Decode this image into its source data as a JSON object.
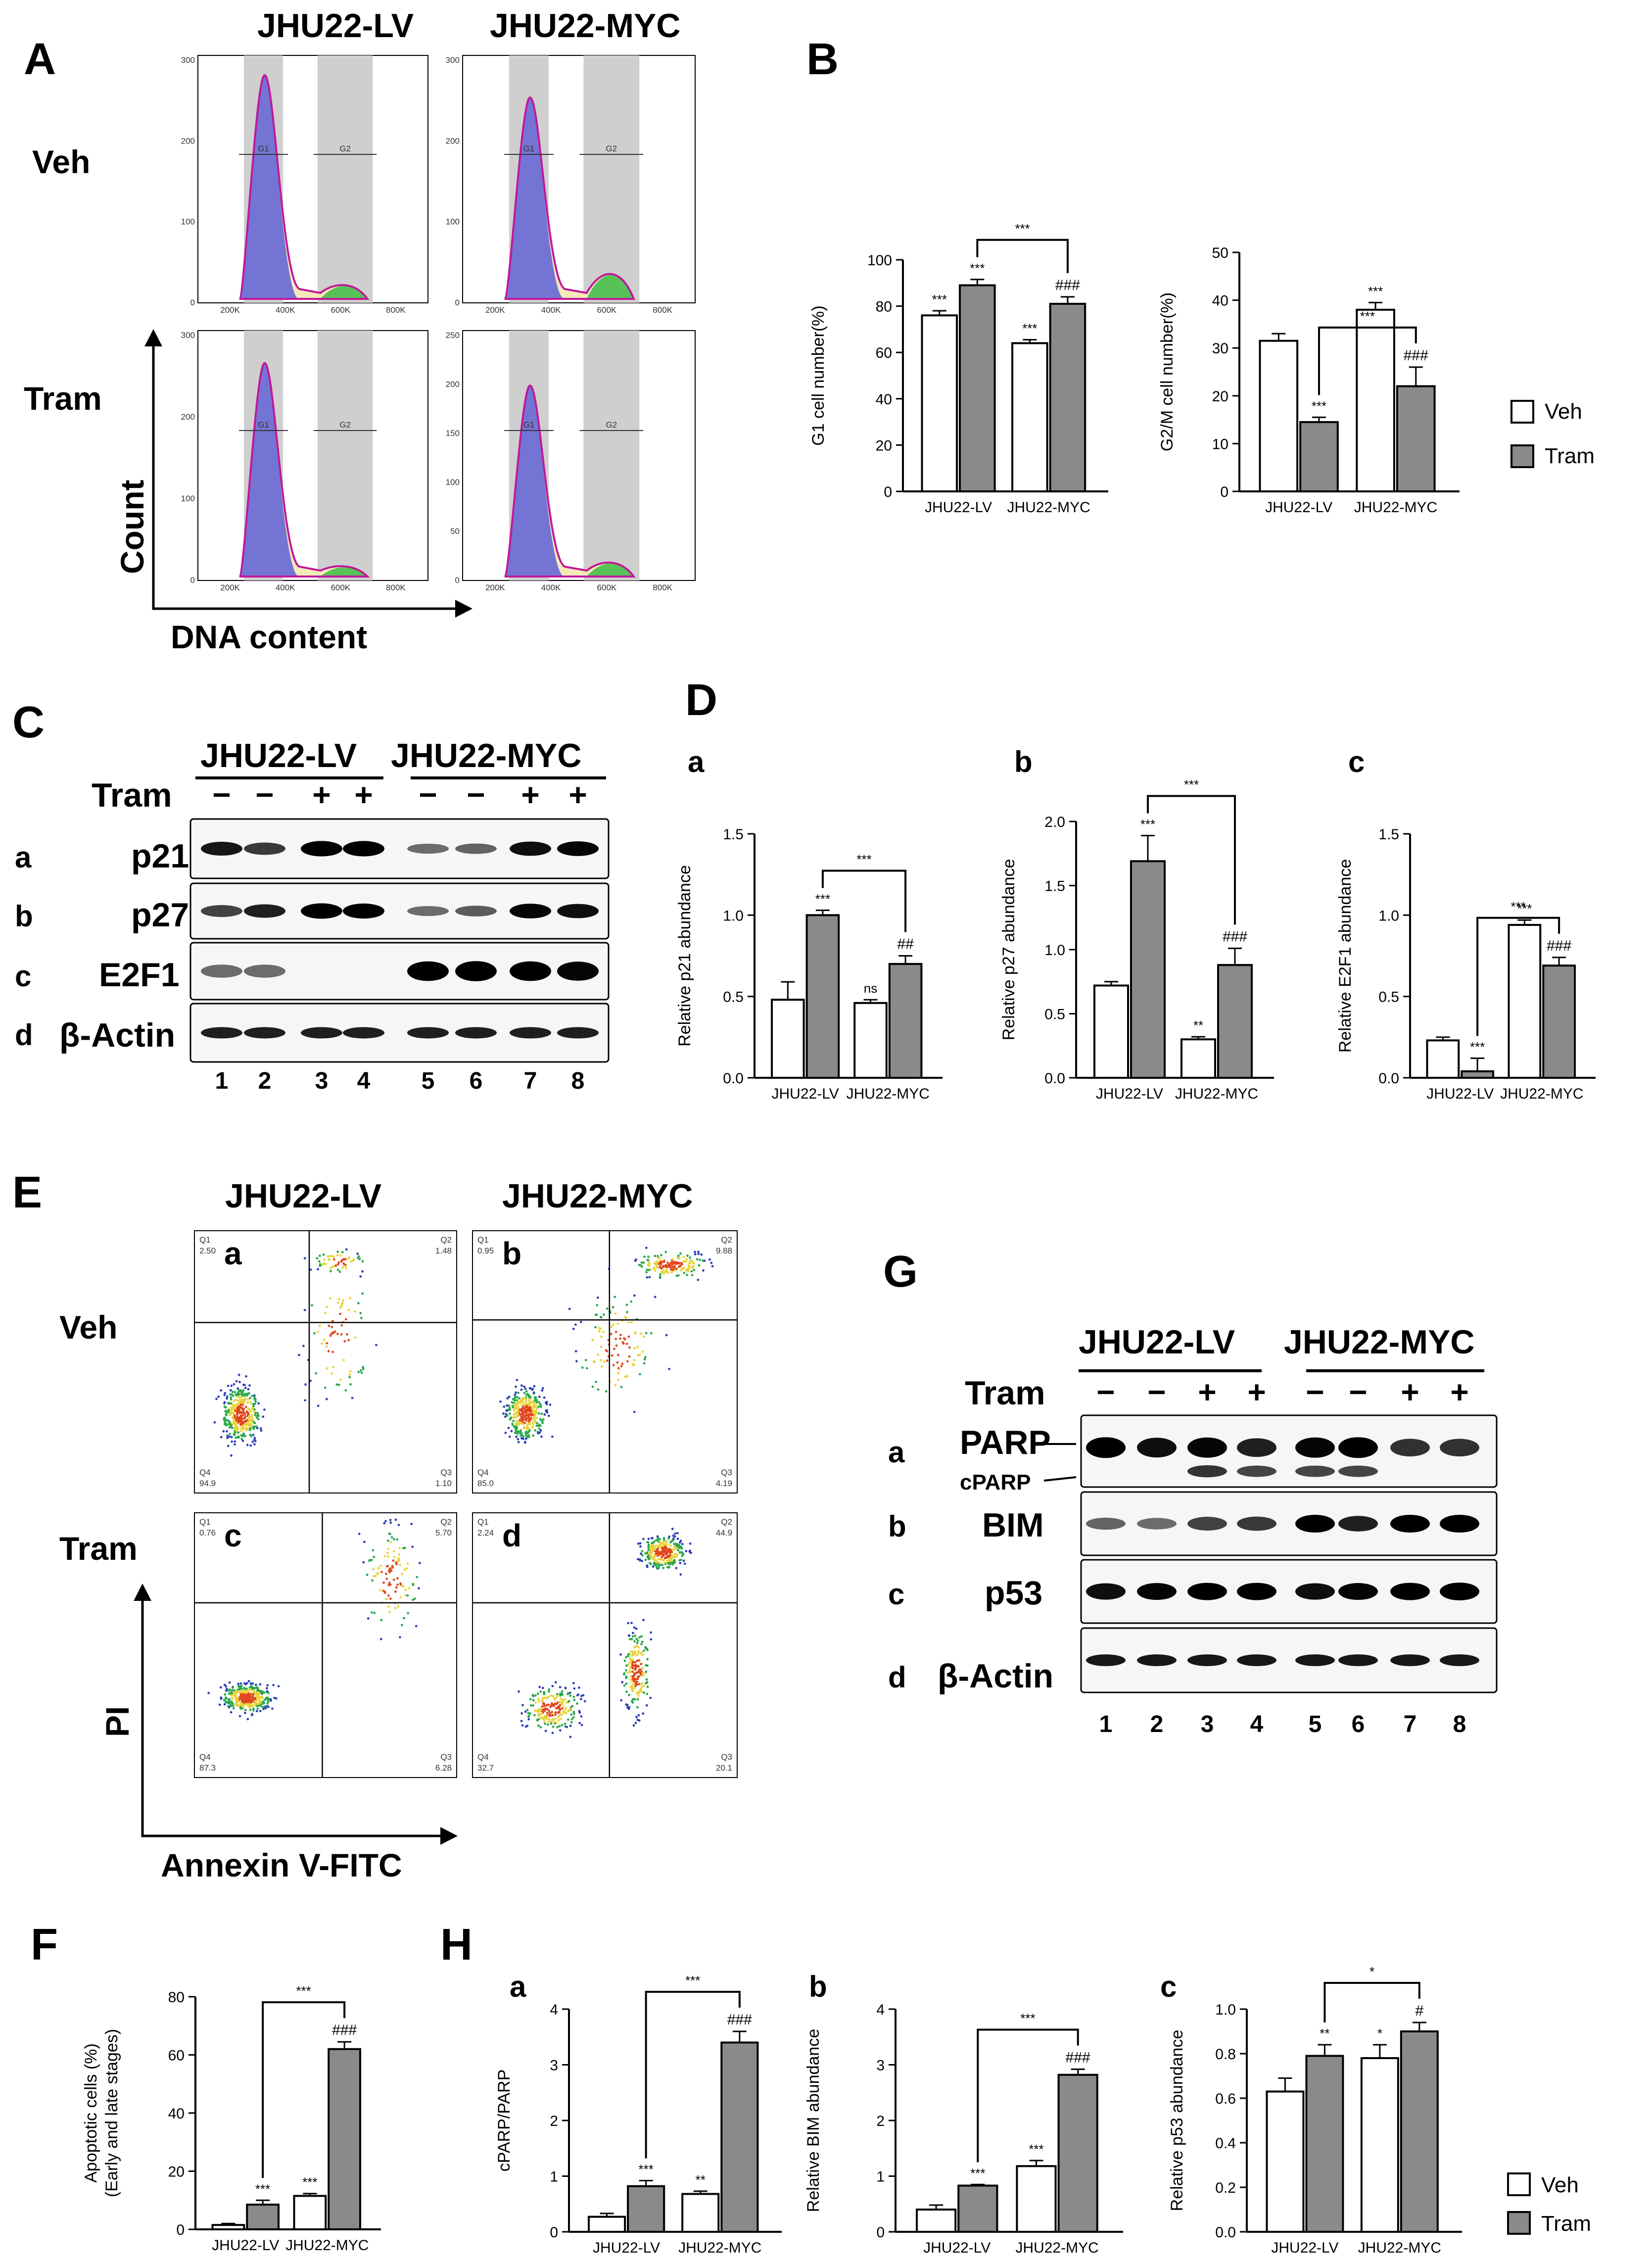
{
  "panel_letters": {
    "A": "A",
    "B": "B",
    "C": "C",
    "D": "D",
    "E": "E",
    "F": "F",
    "G": "G",
    "H": "H"
  },
  "sub_letters": {
    "a": "a",
    "b": "b",
    "c": "c",
    "d": "d"
  },
  "cell_lines": {
    "lv": "JHU22-LV",
    "myc": "JHU22-MYC"
  },
  "conditions": {
    "veh": "Veh",
    "tram": "Tram"
  },
  "legend": {
    "veh": "Veh",
    "tram": "Tram"
  },
  "flow_axes": {
    "count": "Count",
    "dna": "DNA content",
    "pi": "PI",
    "annexin": "Annexin V-FITC"
  },
  "blot_labels": {
    "tram": "Tram",
    "minus": "−",
    "plus": "+",
    "p21": "p21",
    "p27": "p27",
    "e2f1": "E2F1",
    "bactin": "β-Actin",
    "parp": "PARP",
    "cparp": "cPARP",
    "bim": "BIM",
    "p53": "p53"
  },
  "lanes": [
    "1",
    "2",
    "3",
    "4",
    "5",
    "6",
    "7",
    "8"
  ],
  "cell_cycle": {
    "gates": {
      "g1": "G1",
      "g2": "G2"
    },
    "ticks_x": [
      "200K",
      "400K",
      "600K",
      "800K"
    ],
    "ticks_y_veh": [
      "0",
      "100",
      "200",
      "300"
    ],
    "ticks_y_tram_lv": [
      "0",
      "100",
      "200",
      "300"
    ],
    "ticks_y_tram_myc": [
      "0",
      "50",
      "100",
      "150",
      "200",
      "250"
    ]
  },
  "apoptosis_quadrants": {
    "a": {
      "q1": "Q1",
      "q1v": "2.50",
      "q2": "Q2",
      "q2v": "1.48",
      "q3": "Q3",
      "q3v": "1.10",
      "q4": "Q4",
      "q4v": "94.9"
    },
    "b": {
      "q1": "Q1",
      "q1v": "0.95",
      "q2": "Q2",
      "q2v": "9.88",
      "q3": "Q3",
      "q3v": "4.19",
      "q4": "Q4",
      "q4v": "85.0"
    },
    "c": {
      "q1": "Q1",
      "q1v": "0.76",
      "q2": "Q2",
      "q2v": "5.70",
      "q3": "Q3",
      "q3v": "6.28",
      "q4": "Q4",
      "q4v": "87.3"
    },
    "d": {
      "q1": "Q1",
      "q1v": "2.24",
      "q2": "Q2",
      "q2v": "44.9",
      "q3": "Q3",
      "q3v": "20.1",
      "q4": "Q4",
      "q4v": "32.7"
    }
  },
  "chart_data": [
    {
      "id": "B1",
      "type": "bar",
      "ylabel": "G1 cell number(%)",
      "categories": [
        "JHU22-LV",
        "JHU22-MYC"
      ],
      "series": [
        {
          "name": "Veh",
          "values": [
            76,
            64
          ],
          "errors": [
            2,
            1.5
          ]
        },
        {
          "name": "Tram",
          "values": [
            89,
            81
          ],
          "errors": [
            2.5,
            3
          ]
        }
      ],
      "ylim": [
        0,
        100
      ],
      "yticks": [
        0,
        20,
        40,
        60,
        80,
        100
      ],
      "annotations": [
        "***",
        "***",
        "###",
        "***",
        "***"
      ]
    },
    {
      "id": "B2",
      "type": "bar",
      "ylabel": "G2/M cell number(%)",
      "categories": [
        "JHU22-LV",
        "JHU22-MYC"
      ],
      "series": [
        {
          "name": "Veh",
          "values": [
            31.5,
            38
          ],
          "errors": [
            1.5,
            1.5
          ]
        },
        {
          "name": "Tram",
          "values": [
            14.5,
            22
          ],
          "errors": [
            1,
            4
          ]
        }
      ],
      "ylim": [
        0,
        50
      ],
      "yticks": [
        0,
        10,
        20,
        30,
        40,
        50
      ],
      "annotations": [
        "***",
        "***",
        "###",
        "***"
      ]
    },
    {
      "id": "Da",
      "type": "bar",
      "ylabel": "Relative p21 abundance",
      "categories": [
        "JHU22-LV",
        "JHU22-MYC"
      ],
      "series": [
        {
          "name": "Veh",
          "values": [
            0.48,
            0.46
          ],
          "errors": [
            0.11,
            0.02
          ]
        },
        {
          "name": "Tram",
          "values": [
            1.0,
            0.7
          ],
          "errors": [
            0.03,
            0.05
          ]
        }
      ],
      "ylim": [
        0,
        1.5
      ],
      "yticks": [
        0.0,
        0.5,
        1.0,
        1.5
      ],
      "annotations": [
        "***",
        "ns",
        "##",
        "***"
      ]
    },
    {
      "id": "Db",
      "type": "bar",
      "ylabel": "Relative p27 abundance",
      "categories": [
        "JHU22-LV",
        "JHU22-MYC"
      ],
      "series": [
        {
          "name": "Veh",
          "values": [
            0.72,
            0.3
          ],
          "errors": [
            0.03,
            0.02
          ]
        },
        {
          "name": "Tram",
          "values": [
            1.69,
            0.88
          ],
          "errors": [
            0.2,
            0.13
          ]
        }
      ],
      "ylim": [
        0,
        2.0
      ],
      "yticks": [
        0.0,
        0.5,
        1.0,
        1.5,
        2.0
      ],
      "annotations": [
        "***",
        "**",
        "###",
        "***"
      ]
    },
    {
      "id": "Dc",
      "type": "bar",
      "ylabel": "Relative E2F1 abundance",
      "categories": [
        "JHU22-LV",
        "JHU22-MYC"
      ],
      "series": [
        {
          "name": "Veh",
          "values": [
            0.23,
            0.94
          ],
          "errors": [
            0.02,
            0.03
          ]
        },
        {
          "name": "Tram",
          "values": [
            0.04,
            0.69
          ],
          "errors": [
            0.08,
            0.05
          ]
        }
      ],
      "ylim": [
        0,
        1.5
      ],
      "yticks": [
        0.0,
        0.5,
        1.0,
        1.5
      ],
      "annotations": [
        "***",
        "***",
        "###",
        "***"
      ]
    },
    {
      "id": "F",
      "type": "bar",
      "ylabel": "Apoptotic cells (%)",
      "ylabel2": "(Early and late stages)",
      "categories": [
        "JHU22-LV",
        "JHU22-MYC"
      ],
      "series": [
        {
          "name": "Veh",
          "values": [
            1.5,
            11.5
          ],
          "errors": [
            0.5,
            0.8
          ]
        },
        {
          "name": "Tram",
          "values": [
            8.5,
            62
          ],
          "errors": [
            1.5,
            2.5
          ]
        }
      ],
      "ylim": [
        0,
        80
      ],
      "yticks": [
        0,
        20,
        40,
        60,
        80
      ],
      "annotations": [
        "***",
        "***",
        "###",
        "***"
      ]
    },
    {
      "id": "Ha",
      "type": "bar",
      "ylabel": "cPARP/PARP",
      "categories": [
        "JHU22-LV",
        "JHU22-MYC"
      ],
      "series": [
        {
          "name": "Veh",
          "values": [
            0.27,
            0.68
          ],
          "errors": [
            0.06,
            0.05
          ]
        },
        {
          "name": "Tram",
          "values": [
            0.82,
            3.4
          ],
          "errors": [
            0.1,
            0.2
          ]
        }
      ],
      "ylim": [
        0,
        4
      ],
      "yticks": [
        0,
        1,
        2,
        3,
        4
      ],
      "annotations": [
        "***",
        "**",
        "###",
        "***"
      ]
    },
    {
      "id": "Hb",
      "type": "bar",
      "ylabel": "Relative BIM abundance",
      "categories": [
        "JHU22-LV",
        "JHU22-MYC"
      ],
      "series": [
        {
          "name": "Veh",
          "values": [
            0.4,
            1.18
          ],
          "errors": [
            0.08,
            0.1
          ]
        },
        {
          "name": "Tram",
          "values": [
            0.83,
            2.82
          ],
          "errors": [
            0.02,
            0.1
          ]
        }
      ],
      "ylim": [
        0,
        4
      ],
      "yticks": [
        0,
        1,
        2,
        3,
        4
      ],
      "annotations": [
        "***",
        "***",
        "###",
        "***"
      ]
    },
    {
      "id": "Hc",
      "type": "bar",
      "ylabel": "Relative p53 abundance",
      "categories": [
        "JHU22-LV",
        "JHU22-MYC"
      ],
      "series": [
        {
          "name": "Veh",
          "values": [
            0.63,
            0.78
          ],
          "errors": [
            0.06,
            0.06
          ]
        },
        {
          "name": "Tram",
          "values": [
            0.79,
            0.9
          ],
          "errors": [
            0.05,
            0.04
          ]
        }
      ],
      "ylim": [
        0,
        1.0
      ],
      "yticks": [
        0.0,
        0.2,
        0.4,
        0.6,
        0.8,
        1.0
      ],
      "annotations": [
        "**",
        "*",
        "#",
        "*"
      ]
    }
  ]
}
